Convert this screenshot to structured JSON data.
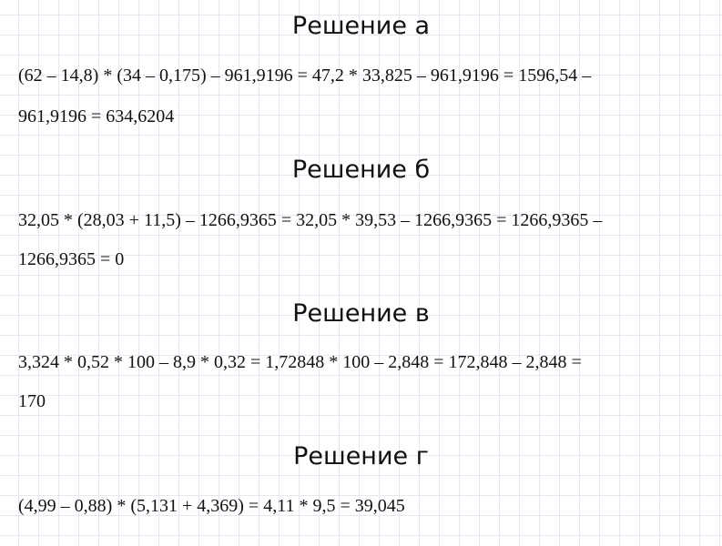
{
  "sections": [
    {
      "title": "Решение а",
      "lines": [
        "(62 – 14,8) * (34 – 0,175) – 961,9196 = 47,2 * 33,825 – 961,9196 = 1596,54 –",
        "961,9196 = 634,6204"
      ]
    },
    {
      "title": "Решение б",
      "lines": [
        "32,05 * (28,03 + 11,5) – 1266,9365 = 32,05 * 39,53 – 1266,9365 = 1266,9365 –",
        "1266,9365 = 0"
      ]
    },
    {
      "title": "Решение в",
      "lines": [
        "3,324 * 0,52 * 100 – 8,9 * 0,32 = 1,72848 * 100 – 2,848 = 172,848 – 2,848 =",
        "170"
      ]
    },
    {
      "title": "Решение г",
      "lines": [
        "(4,99 – 0,88) * (5,131 + 4,369) = 4,11 * 9,5 = 39,045"
      ]
    }
  ]
}
